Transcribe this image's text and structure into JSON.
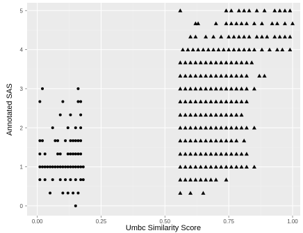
{
  "chart_data": {
    "type": "scatter",
    "title": "",
    "xlabel": "Umbc Similarity Score",
    "ylabel": "Annotated SAS",
    "xlim": [
      -0.04,
      1.03
    ],
    "ylim": [
      -0.25,
      5.2
    ],
    "x_ticks": [
      0.0,
      0.25,
      0.5,
      0.75,
      1.0
    ],
    "x_tick_labels": [
      "0.00",
      "0.25",
      "0.50",
      "0.75",
      "1.00"
    ],
    "y_ticks": [
      0,
      1,
      2,
      3,
      4,
      5
    ],
    "y_tick_labels": [
      "0",
      "1",
      "2",
      "3",
      "4",
      "5"
    ],
    "grid": true,
    "legend": "none",
    "colors": {
      "panel": "#ebebeb",
      "grid_major": "#ffffff",
      "grid_minor": "#f2f2f2",
      "points": "#000000"
    },
    "series": [
      {
        "marker": "circle",
        "points": [
          [
            0.15,
            0.0
          ],
          [
            0.05,
            0.33
          ],
          [
            0.1,
            0.33
          ],
          [
            0.12,
            0.33
          ],
          [
            0.14,
            0.33
          ],
          [
            0.16,
            0.33
          ],
          [
            0.01,
            0.67
          ],
          [
            0.03,
            0.67
          ],
          [
            0.06,
            0.67
          ],
          [
            0.09,
            0.67
          ],
          [
            0.11,
            0.67
          ],
          [
            0.13,
            0.67
          ],
          [
            0.15,
            0.67
          ],
          [
            0.17,
            0.67
          ],
          [
            0.18,
            0.67
          ],
          [
            0.01,
            1.0
          ],
          [
            0.02,
            1.0
          ],
          [
            0.03,
            1.0
          ],
          [
            0.04,
            1.0
          ],
          [
            0.05,
            1.0
          ],
          [
            0.06,
            1.0
          ],
          [
            0.07,
            1.0
          ],
          [
            0.08,
            1.0
          ],
          [
            0.09,
            1.0
          ],
          [
            0.1,
            1.0
          ],
          [
            0.11,
            1.0
          ],
          [
            0.12,
            1.0
          ],
          [
            0.13,
            1.0
          ],
          [
            0.14,
            1.0
          ],
          [
            0.15,
            1.0
          ],
          [
            0.16,
            1.0
          ],
          [
            0.17,
            1.0
          ],
          [
            0.18,
            1.0
          ],
          [
            0.01,
            1.33
          ],
          [
            0.03,
            1.33
          ],
          [
            0.08,
            1.33
          ],
          [
            0.09,
            1.33
          ],
          [
            0.12,
            1.33
          ],
          [
            0.13,
            1.33
          ],
          [
            0.14,
            1.33
          ],
          [
            0.15,
            1.33
          ],
          [
            0.16,
            1.33
          ],
          [
            0.17,
            1.33
          ],
          [
            0.01,
            1.67
          ],
          [
            0.02,
            1.67
          ],
          [
            0.07,
            1.67
          ],
          [
            0.08,
            1.67
          ],
          [
            0.11,
            1.67
          ],
          [
            0.13,
            1.67
          ],
          [
            0.14,
            1.67
          ],
          [
            0.15,
            1.67
          ],
          [
            0.16,
            1.67
          ],
          [
            0.17,
            1.67
          ],
          [
            0.06,
            2.0
          ],
          [
            0.12,
            2.0
          ],
          [
            0.15,
            2.0
          ],
          [
            0.17,
            2.0
          ],
          [
            0.09,
            2.33
          ],
          [
            0.13,
            2.33
          ],
          [
            0.17,
            2.33
          ],
          [
            0.1,
            2.67
          ],
          [
            0.01,
            2.67
          ],
          [
            0.16,
            2.67
          ],
          [
            0.17,
            2.67
          ],
          [
            0.02,
            3.0
          ],
          [
            0.16,
            3.0
          ]
        ]
      },
      {
        "marker": "triangle",
        "points": [
          [
            0.56,
            0.33
          ],
          [
            0.6,
            0.33
          ],
          [
            0.65,
            0.33
          ],
          [
            0.56,
            0.67
          ],
          [
            0.58,
            0.67
          ],
          [
            0.6,
            0.67
          ],
          [
            0.62,
            0.67
          ],
          [
            0.64,
            0.67
          ],
          [
            0.66,
            0.67
          ],
          [
            0.68,
            0.67
          ],
          [
            0.7,
            0.67
          ],
          [
            0.74,
            0.67
          ],
          [
            0.56,
            1.0
          ],
          [
            0.58,
            1.0
          ],
          [
            0.6,
            1.0
          ],
          [
            0.62,
            1.0
          ],
          [
            0.64,
            1.0
          ],
          [
            0.66,
            1.0
          ],
          [
            0.68,
            1.0
          ],
          [
            0.7,
            1.0
          ],
          [
            0.72,
            1.0
          ],
          [
            0.74,
            1.0
          ],
          [
            0.76,
            1.0
          ],
          [
            0.78,
            1.0
          ],
          [
            0.8,
            1.0
          ],
          [
            0.82,
            1.0
          ],
          [
            0.85,
            1.0
          ],
          [
            0.56,
            1.33
          ],
          [
            0.58,
            1.33
          ],
          [
            0.6,
            1.33
          ],
          [
            0.62,
            1.33
          ],
          [
            0.64,
            1.33
          ],
          [
            0.66,
            1.33
          ],
          [
            0.68,
            1.33
          ],
          [
            0.7,
            1.33
          ],
          [
            0.72,
            1.33
          ],
          [
            0.74,
            1.33
          ],
          [
            0.76,
            1.33
          ],
          [
            0.78,
            1.33
          ],
          [
            0.8,
            1.33
          ],
          [
            0.82,
            1.33
          ],
          [
            0.56,
            1.67
          ],
          [
            0.58,
            1.67
          ],
          [
            0.6,
            1.67
          ],
          [
            0.62,
            1.67
          ],
          [
            0.64,
            1.67
          ],
          [
            0.66,
            1.67
          ],
          [
            0.68,
            1.67
          ],
          [
            0.7,
            1.67
          ],
          [
            0.72,
            1.67
          ],
          [
            0.74,
            1.67
          ],
          [
            0.76,
            1.67
          ],
          [
            0.78,
            1.67
          ],
          [
            0.81,
            1.67
          ],
          [
            0.56,
            2.0
          ],
          [
            0.58,
            2.0
          ],
          [
            0.6,
            2.0
          ],
          [
            0.62,
            2.0
          ],
          [
            0.64,
            2.0
          ],
          [
            0.66,
            2.0
          ],
          [
            0.68,
            2.0
          ],
          [
            0.7,
            2.0
          ],
          [
            0.72,
            2.0
          ],
          [
            0.74,
            2.0
          ],
          [
            0.76,
            2.0
          ],
          [
            0.78,
            2.0
          ],
          [
            0.8,
            2.0
          ],
          [
            0.82,
            2.0
          ],
          [
            0.85,
            2.0
          ],
          [
            0.56,
            2.33
          ],
          [
            0.58,
            2.33
          ],
          [
            0.6,
            2.33
          ],
          [
            0.62,
            2.33
          ],
          [
            0.64,
            2.33
          ],
          [
            0.66,
            2.33
          ],
          [
            0.68,
            2.33
          ],
          [
            0.7,
            2.33
          ],
          [
            0.72,
            2.33
          ],
          [
            0.74,
            2.33
          ],
          [
            0.76,
            2.33
          ],
          [
            0.78,
            2.33
          ],
          [
            0.8,
            2.33
          ],
          [
            0.56,
            2.67
          ],
          [
            0.58,
            2.67
          ],
          [
            0.6,
            2.67
          ],
          [
            0.62,
            2.67
          ],
          [
            0.64,
            2.67
          ],
          [
            0.66,
            2.67
          ],
          [
            0.68,
            2.67
          ],
          [
            0.7,
            2.67
          ],
          [
            0.72,
            2.67
          ],
          [
            0.74,
            2.67
          ],
          [
            0.76,
            2.67
          ],
          [
            0.78,
            2.67
          ],
          [
            0.8,
            2.67
          ],
          [
            0.82,
            2.67
          ],
          [
            0.56,
            3.0
          ],
          [
            0.58,
            3.0
          ],
          [
            0.6,
            3.0
          ],
          [
            0.62,
            3.0
          ],
          [
            0.64,
            3.0
          ],
          [
            0.66,
            3.0
          ],
          [
            0.68,
            3.0
          ],
          [
            0.7,
            3.0
          ],
          [
            0.72,
            3.0
          ],
          [
            0.74,
            3.0
          ],
          [
            0.76,
            3.0
          ],
          [
            0.78,
            3.0
          ],
          [
            0.8,
            3.0
          ],
          [
            0.82,
            3.0
          ],
          [
            0.85,
            3.0
          ],
          [
            0.56,
            3.33
          ],
          [
            0.58,
            3.33
          ],
          [
            0.6,
            3.33
          ],
          [
            0.62,
            3.33
          ],
          [
            0.64,
            3.33
          ],
          [
            0.66,
            3.33
          ],
          [
            0.68,
            3.33
          ],
          [
            0.7,
            3.33
          ],
          [
            0.72,
            3.33
          ],
          [
            0.74,
            3.33
          ],
          [
            0.76,
            3.33
          ],
          [
            0.78,
            3.33
          ],
          [
            0.8,
            3.33
          ],
          [
            0.82,
            3.33
          ],
          [
            0.87,
            3.33
          ],
          [
            0.89,
            3.33
          ],
          [
            0.56,
            3.67
          ],
          [
            0.58,
            3.67
          ],
          [
            0.6,
            3.67
          ],
          [
            0.62,
            3.67
          ],
          [
            0.64,
            3.67
          ],
          [
            0.66,
            3.67
          ],
          [
            0.68,
            3.67
          ],
          [
            0.7,
            3.67
          ],
          [
            0.72,
            3.67
          ],
          [
            0.74,
            3.67
          ],
          [
            0.76,
            3.67
          ],
          [
            0.78,
            3.67
          ],
          [
            0.8,
            3.67
          ],
          [
            0.82,
            3.67
          ],
          [
            0.84,
            3.67
          ],
          [
            0.57,
            4.0
          ],
          [
            0.59,
            4.0
          ],
          [
            0.61,
            4.0
          ],
          [
            0.63,
            4.0
          ],
          [
            0.65,
            4.0
          ],
          [
            0.67,
            4.0
          ],
          [
            0.69,
            4.0
          ],
          [
            0.71,
            4.0
          ],
          [
            0.73,
            4.0
          ],
          [
            0.75,
            4.0
          ],
          [
            0.77,
            4.0
          ],
          [
            0.79,
            4.0
          ],
          [
            0.81,
            4.0
          ],
          [
            0.83,
            4.0
          ],
          [
            0.85,
            4.0
          ],
          [
            0.88,
            4.0
          ],
          [
            0.91,
            4.0
          ],
          [
            0.94,
            4.0
          ],
          [
            0.96,
            4.0
          ],
          [
            0.99,
            4.0
          ],
          [
            0.6,
            4.33
          ],
          [
            0.62,
            4.33
          ],
          [
            0.66,
            4.33
          ],
          [
            0.69,
            4.33
          ],
          [
            0.72,
            4.33
          ],
          [
            0.75,
            4.33
          ],
          [
            0.77,
            4.33
          ],
          [
            0.79,
            4.33
          ],
          [
            0.81,
            4.33
          ],
          [
            0.83,
            4.33
          ],
          [
            0.86,
            4.33
          ],
          [
            0.88,
            4.33
          ],
          [
            0.9,
            4.33
          ],
          [
            0.93,
            4.33
          ],
          [
            0.95,
            4.33
          ],
          [
            0.97,
            4.33
          ],
          [
            0.99,
            4.33
          ],
          [
            0.62,
            4.67
          ],
          [
            0.63,
            4.67
          ],
          [
            0.7,
            4.67
          ],
          [
            0.74,
            4.67
          ],
          [
            0.76,
            4.67
          ],
          [
            0.78,
            4.67
          ],
          [
            0.8,
            4.67
          ],
          [
            0.82,
            4.67
          ],
          [
            0.85,
            4.67
          ],
          [
            0.88,
            4.67
          ],
          [
            0.92,
            4.67
          ],
          [
            0.94,
            4.67
          ],
          [
            0.97,
            4.67
          ],
          [
            1.0,
            4.67
          ],
          [
            0.56,
            5.0
          ],
          [
            0.74,
            5.0
          ],
          [
            0.76,
            5.0
          ],
          [
            0.79,
            5.0
          ],
          [
            0.81,
            5.0
          ],
          [
            0.83,
            5.0
          ],
          [
            0.86,
            5.0
          ],
          [
            0.89,
            5.0
          ],
          [
            0.93,
            5.0
          ],
          [
            0.95,
            5.0
          ],
          [
            0.97,
            5.0
          ],
          [
            0.99,
            5.0
          ]
        ]
      }
    ]
  }
}
